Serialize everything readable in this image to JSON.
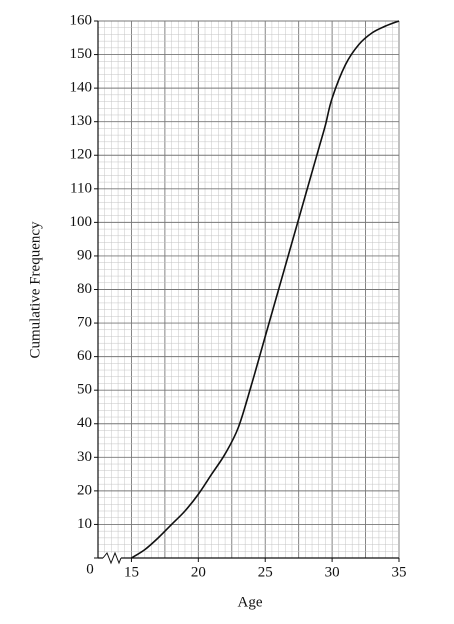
{
  "chart_data": {
    "type": "line",
    "x_label": "Age",
    "y_label": "Cumulative Frequency",
    "x": [
      15,
      16,
      17,
      18,
      19,
      20,
      21,
      22,
      23,
      24,
      25,
      26,
      27,
      28,
      29,
      29.5,
      30,
      31,
      32,
      33,
      34,
      35
    ],
    "values": [
      0,
      2.5,
      6,
      10,
      14,
      19,
      25,
      31,
      39,
      52,
      66,
      80,
      94,
      108,
      122,
      129,
      137,
      147,
      153,
      156.5,
      158.5,
      160
    ],
    "color": "#111111",
    "xlim": [
      12.5,
      35
    ],
    "ylim": [
      0,
      160
    ],
    "xticks": [
      15,
      20,
      25,
      30,
      35
    ],
    "yticks": [
      0,
      10,
      20,
      30,
      40,
      50,
      60,
      70,
      80,
      90,
      100,
      110,
      120,
      130,
      140,
      150,
      160
    ],
    "grid": true,
    "x_minor_step": 0.5,
    "y_minor_step": 2,
    "x_axis_break": true
  }
}
